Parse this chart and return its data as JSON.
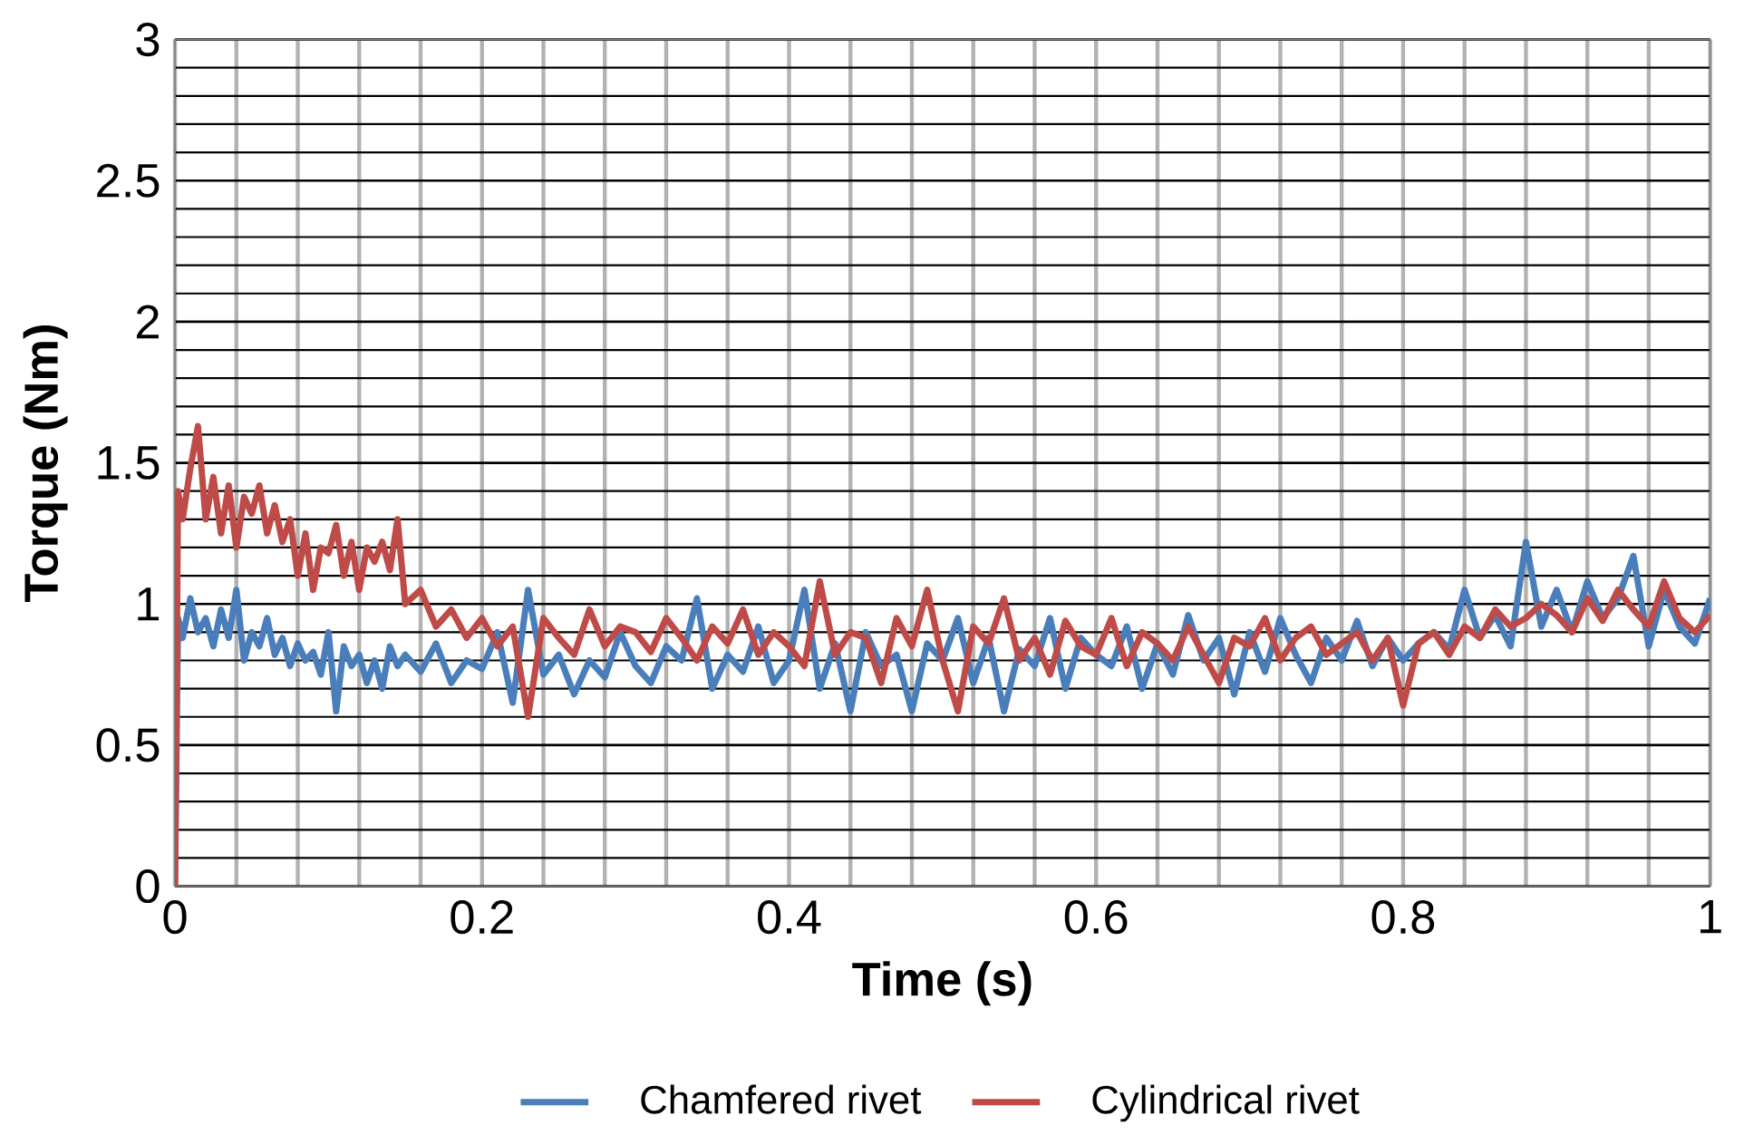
{
  "chart_data": {
    "type": "line",
    "xlabel": "Time (s)",
    "ylabel": "Torque (Nm)",
    "xlim": [
      0,
      1
    ],
    "ylim": [
      0,
      3
    ],
    "xticks": [
      0,
      0.2,
      0.4,
      0.6,
      0.8,
      1
    ],
    "yticks": [
      0,
      0.5,
      1,
      1.5,
      2,
      2.5,
      3
    ],
    "grid": true,
    "legend": "bottom",
    "marker": "none",
    "line_style": "solid",
    "x": [
      0,
      0.002,
      0.005,
      0.01,
      0.015,
      0.02,
      0.025,
      0.03,
      0.035,
      0.04,
      0.045,
      0.05,
      0.055,
      0.06,
      0.065,
      0.07,
      0.075,
      0.08,
      0.085,
      0.09,
      0.095,
      0.1,
      0.105,
      0.11,
      0.115,
      0.12,
      0.125,
      0.13,
      0.135,
      0.14,
      0.145,
      0.15,
      0.16,
      0.17,
      0.18,
      0.19,
      0.2,
      0.21,
      0.22,
      0.23,
      0.24,
      0.25,
      0.26,
      0.27,
      0.28,
      0.29,
      0.3,
      0.31,
      0.32,
      0.33,
      0.34,
      0.35,
      0.36,
      0.37,
      0.38,
      0.39,
      0.4,
      0.41,
      0.42,
      0.43,
      0.44,
      0.45,
      0.46,
      0.47,
      0.48,
      0.49,
      0.5,
      0.51,
      0.52,
      0.53,
      0.54,
      0.55,
      0.56,
      0.57,
      0.58,
      0.59,
      0.6,
      0.61,
      0.62,
      0.63,
      0.64,
      0.65,
      0.66,
      0.67,
      0.68,
      0.69,
      0.7,
      0.71,
      0.72,
      0.73,
      0.74,
      0.75,
      0.76,
      0.77,
      0.78,
      0.79,
      0.8,
      0.81,
      0.82,
      0.83,
      0.84,
      0.85,
      0.86,
      0.87,
      0.88,
      0.89,
      0.9,
      0.91,
      0.92,
      0.93,
      0.94,
      0.95,
      0.96,
      0.97,
      0.98,
      0.99,
      1
    ],
    "series": [
      {
        "name": "Chamfered rivet",
        "color": "#4a7ebb",
        "values": [
          0,
          0.95,
          0.88,
          1.02,
          0.9,
          0.95,
          0.85,
          0.98,
          0.88,
          1.05,
          0.8,
          0.9,
          0.85,
          0.95,
          0.82,
          0.88,
          0.78,
          0.86,
          0.8,
          0.83,
          0.75,
          0.9,
          0.62,
          0.85,
          0.78,
          0.82,
          0.72,
          0.8,
          0.7,
          0.85,
          0.78,
          0.82,
          0.76,
          0.86,
          0.72,
          0.8,
          0.77,
          0.9,
          0.65,
          1.05,
          0.75,
          0.82,
          0.68,
          0.8,
          0.74,
          0.9,
          0.78,
          0.72,
          0.85,
          0.8,
          1.02,
          0.7,
          0.82,
          0.76,
          0.92,
          0.72,
          0.8,
          1.05,
          0.7,
          0.86,
          0.62,
          0.9,
          0.78,
          0.82,
          0.62,
          0.86,
          0.8,
          0.95,
          0.72,
          0.88,
          0.62,
          0.84,
          0.78,
          0.95,
          0.7,
          0.88,
          0.82,
          0.78,
          0.92,
          0.7,
          0.86,
          0.75,
          0.96,
          0.8,
          0.88,
          0.68,
          0.9,
          0.76,
          0.95,
          0.82,
          0.72,
          0.88,
          0.8,
          0.94,
          0.78,
          0.88,
          0.8,
          0.86,
          0.9,
          0.84,
          1.05,
          0.88,
          0.96,
          0.85,
          1.22,
          0.92,
          1.05,
          0.9,
          1.08,
          0.95,
          1.02,
          1.17,
          0.85,
          1.05,
          0.92,
          0.86,
          1.02
        ]
      },
      {
        "name": "Cylindrical rivet",
        "color": "#be4b48",
        "values": [
          0,
          1.4,
          1.3,
          1.48,
          1.63,
          1.3,
          1.45,
          1.25,
          1.42,
          1.2,
          1.38,
          1.32,
          1.42,
          1.25,
          1.35,
          1.22,
          1.3,
          1.1,
          1.25,
          1.05,
          1.2,
          1.18,
          1.28,
          1.1,
          1.22,
          1.05,
          1.2,
          1.15,
          1.22,
          1.12,
          1.3,
          1.0,
          1.05,
          0.92,
          0.98,
          0.88,
          0.95,
          0.85,
          0.92,
          0.6,
          0.95,
          0.88,
          0.82,
          0.98,
          0.85,
          0.92,
          0.9,
          0.83,
          0.95,
          0.88,
          0.8,
          0.92,
          0.86,
          0.98,
          0.82,
          0.9,
          0.85,
          0.78,
          1.08,
          0.82,
          0.9,
          0.88,
          0.72,
          0.95,
          0.85,
          1.05,
          0.8,
          0.62,
          0.92,
          0.86,
          1.02,
          0.8,
          0.88,
          0.75,
          0.94,
          0.85,
          0.82,
          0.95,
          0.78,
          0.9,
          0.86,
          0.8,
          0.92,
          0.82,
          0.72,
          0.88,
          0.85,
          0.95,
          0.8,
          0.88,
          0.92,
          0.82,
          0.86,
          0.9,
          0.8,
          0.88,
          0.64,
          0.86,
          0.9,
          0.82,
          0.92,
          0.88,
          0.98,
          0.92,
          0.95,
          1.0,
          0.96,
          0.9,
          1.02,
          0.94,
          1.05,
          0.98,
          0.92,
          1.08,
          0.95,
          0.9,
          0.96
        ]
      }
    ]
  }
}
